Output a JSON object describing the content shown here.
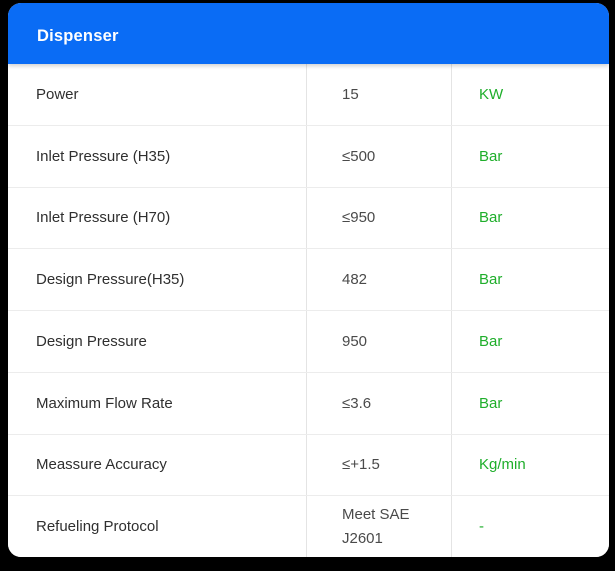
{
  "header": {
    "title": "Dispenser"
  },
  "colors": {
    "header_bg": "#0a6cf5",
    "header_text": "#ffffff",
    "unit_green": "#1fae2b",
    "label_text": "#2f2f2f",
    "value_text": "#4a4a4a",
    "row_divider": "#ececec",
    "page_bg": "#000000"
  },
  "table": {
    "rows": [
      {
        "label": "Power",
        "value": "15",
        "unit": "KW"
      },
      {
        "label": "Inlet Pressure (H35)",
        "value": "≤500",
        "unit": "Bar"
      },
      {
        "label": "Inlet Pressure (H70)",
        "value": "≤950",
        "unit": "Bar"
      },
      {
        "label": "Design Pressure(H35)",
        "value": "482",
        "unit": "Bar"
      },
      {
        "label": "Design Pressure",
        "value": "950",
        "unit": "Bar"
      },
      {
        "label": "Maximum Flow Rate",
        "value": "≤3.6",
        "unit": "Bar"
      },
      {
        "label": "Meassure Accuracy",
        "value": "≤+1.5",
        "unit": "Kg/min"
      },
      {
        "label": "Refueling Protocol",
        "value": "Meet SAE J2601",
        "unit": "-"
      }
    ]
  }
}
